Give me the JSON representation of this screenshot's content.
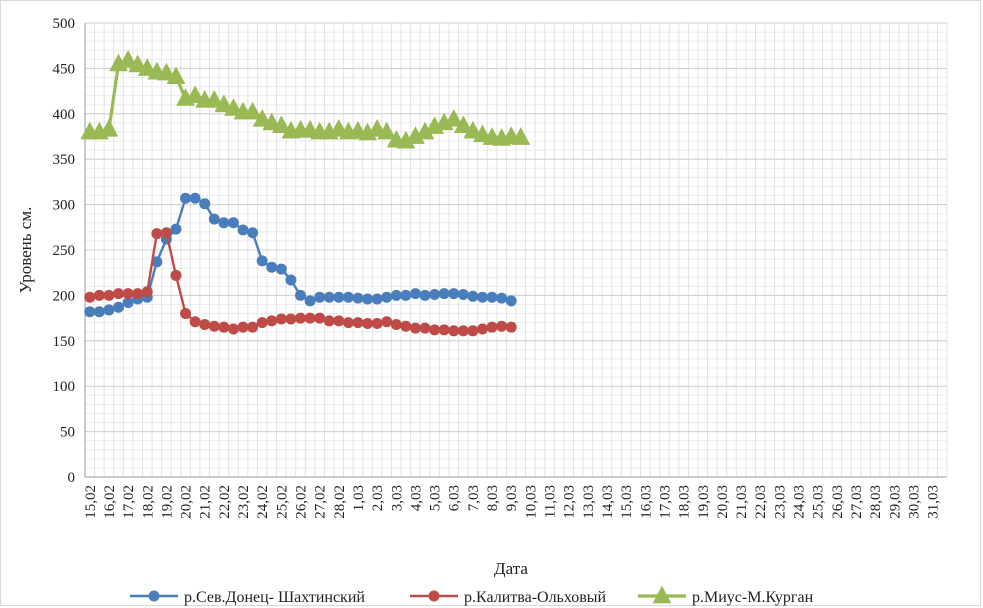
{
  "chart_data": {
    "type": "line",
    "xlabel": "Дата",
    "ylabel": "Уровень см.",
    "ylim": [
      0,
      500
    ],
    "yticks": [
      0,
      50,
      100,
      150,
      200,
      250,
      300,
      350,
      400,
      450,
      500
    ],
    "grid": true,
    "legend_position": "bottom",
    "categories": [
      "15,02",
      "",
      "16,02",
      "",
      "17,02",
      "",
      "18,02",
      "",
      "19,02",
      "",
      "20,02",
      "",
      "21,02",
      "",
      "22,02",
      "",
      "23,02",
      "",
      "24,02",
      "",
      "25,02",
      "",
      "26,02",
      "",
      "27,02",
      "",
      "28,02",
      "",
      "1,03",
      "",
      "2,03",
      "",
      "3,03",
      "",
      "4,03",
      "",
      "5,03",
      "",
      "6,03",
      "",
      "7,03",
      "",
      "8,03",
      "",
      "9,03",
      "",
      "10,03",
      "",
      "11,03",
      "",
      "12,03",
      "",
      "13,03",
      "",
      "14,03",
      "",
      "15,03",
      "",
      "16,03",
      "",
      "17,03",
      "",
      "18,03",
      "",
      "19,03",
      "",
      "20,03",
      "",
      "21,03",
      "",
      "22,03",
      "",
      "23,03",
      "",
      "24,03",
      "",
      "25,03",
      "",
      "26,03",
      "",
      "27,03",
      "",
      "28,03",
      "",
      "29,03",
      "",
      "30,03",
      "",
      "31,03",
      ""
    ],
    "series": [
      {
        "name": "р.Сев.Донец- Шахтинский",
        "color": "#4a7ebb",
        "marker": "circle",
        "points": [
          [
            0,
            182
          ],
          [
            1,
            182
          ],
          [
            2,
            184
          ],
          [
            3,
            187
          ],
          [
            4,
            192
          ],
          [
            5,
            196
          ],
          [
            6,
            198
          ],
          [
            7,
            237
          ],
          [
            8,
            262
          ],
          [
            9,
            273
          ],
          [
            10,
            307
          ],
          [
            11,
            307
          ],
          [
            12,
            301
          ],
          [
            13,
            284
          ],
          [
            14,
            280
          ],
          [
            15,
            280
          ],
          [
            16,
            272
          ],
          [
            17,
            269
          ],
          [
            18,
            238
          ],
          [
            19,
            231
          ],
          [
            20,
            229
          ],
          [
            21,
            217
          ],
          [
            22,
            200
          ],
          [
            23,
            194
          ],
          [
            24,
            198
          ],
          [
            25,
            198
          ],
          [
            26,
            198
          ],
          [
            27,
            198
          ],
          [
            28,
            197
          ],
          [
            29,
            196
          ],
          [
            30,
            196
          ],
          [
            31,
            198
          ],
          [
            32,
            200
          ],
          [
            33,
            200
          ],
          [
            34,
            202
          ],
          [
            35,
            200
          ],
          [
            36,
            201
          ],
          [
            37,
            202
          ],
          [
            38,
            202
          ],
          [
            39,
            201
          ],
          [
            40,
            199
          ],
          [
            41,
            198
          ],
          [
            42,
            198
          ],
          [
            43,
            197
          ],
          [
            44,
            194
          ]
        ]
      },
      {
        "name": "р.Калитва-Ольховый",
        "color": "#be4b48",
        "marker": "circle",
        "points": [
          [
            0,
            198
          ],
          [
            1,
            200
          ],
          [
            2,
            200
          ],
          [
            3,
            202
          ],
          [
            4,
            202
          ],
          [
            5,
            202
          ],
          [
            6,
            204
          ],
          [
            7,
            268
          ],
          [
            8,
            269
          ],
          [
            9,
            222
          ],
          [
            10,
            180
          ],
          [
            11,
            171
          ],
          [
            12,
            168
          ],
          [
            13,
            166
          ],
          [
            14,
            165
          ],
          [
            15,
            163
          ],
          [
            16,
            165
          ],
          [
            17,
            165
          ],
          [
            18,
            170
          ],
          [
            19,
            172
          ],
          [
            20,
            174
          ],
          [
            21,
            174
          ],
          [
            22,
            175
          ],
          [
            23,
            175
          ],
          [
            24,
            175
          ],
          [
            25,
            172
          ],
          [
            26,
            172
          ],
          [
            27,
            170
          ],
          [
            28,
            170
          ],
          [
            29,
            169
          ],
          [
            30,
            169
          ],
          [
            31,
            171
          ],
          [
            32,
            168
          ],
          [
            33,
            166
          ],
          [
            34,
            164
          ],
          [
            35,
            164
          ],
          [
            36,
            162
          ],
          [
            37,
            162
          ],
          [
            38,
            161
          ],
          [
            39,
            161
          ],
          [
            40,
            161
          ],
          [
            41,
            163
          ],
          [
            42,
            165
          ],
          [
            43,
            166
          ],
          [
            44,
            165
          ]
        ]
      },
      {
        "name": "р.Миус-М.Курган",
        "color": "#98b954",
        "marker": "triangle",
        "points": [
          [
            0,
            380
          ],
          [
            1,
            380
          ],
          [
            2,
            383
          ],
          [
            3,
            455
          ],
          [
            4,
            459
          ],
          [
            5,
            454
          ],
          [
            6,
            450
          ],
          [
            7,
            446
          ],
          [
            8,
            445
          ],
          [
            9,
            441
          ],
          [
            10,
            417
          ],
          [
            11,
            420
          ],
          [
            12,
            415
          ],
          [
            13,
            415
          ],
          [
            14,
            410
          ],
          [
            15,
            406
          ],
          [
            16,
            402
          ],
          [
            17,
            402
          ],
          [
            18,
            394
          ],
          [
            19,
            390
          ],
          [
            20,
            387
          ],
          [
            21,
            381
          ],
          [
            22,
            382
          ],
          [
            23,
            382
          ],
          [
            24,
            380
          ],
          [
            25,
            380
          ],
          [
            26,
            383
          ],
          [
            27,
            380
          ],
          [
            28,
            381
          ],
          [
            29,
            379
          ],
          [
            30,
            383
          ],
          [
            31,
            380
          ],
          [
            32,
            371
          ],
          [
            33,
            370
          ],
          [
            34,
            375
          ],
          [
            35,
            380
          ],
          [
            36,
            386
          ],
          [
            37,
            390
          ],
          [
            38,
            394
          ],
          [
            39,
            387
          ],
          [
            40,
            381
          ],
          [
            41,
            377
          ],
          [
            42,
            374
          ],
          [
            43,
            373
          ],
          [
            44,
            375
          ],
          [
            45,
            374
          ]
        ]
      }
    ]
  }
}
